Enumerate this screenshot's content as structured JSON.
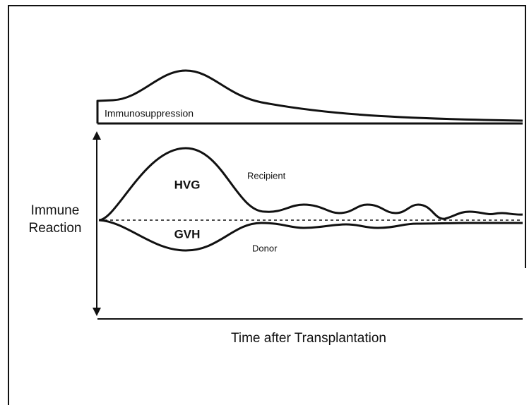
{
  "immunosuppression": "Immunosuppression",
  "hvg": "HVG",
  "recipient": "Recipient",
  "gvh": "GVH",
  "donor": "Donor",
  "y_axis": {
    "line1": "Immune",
    "line2": "Reaction"
  },
  "x_axis": "Time after Transplantation"
}
